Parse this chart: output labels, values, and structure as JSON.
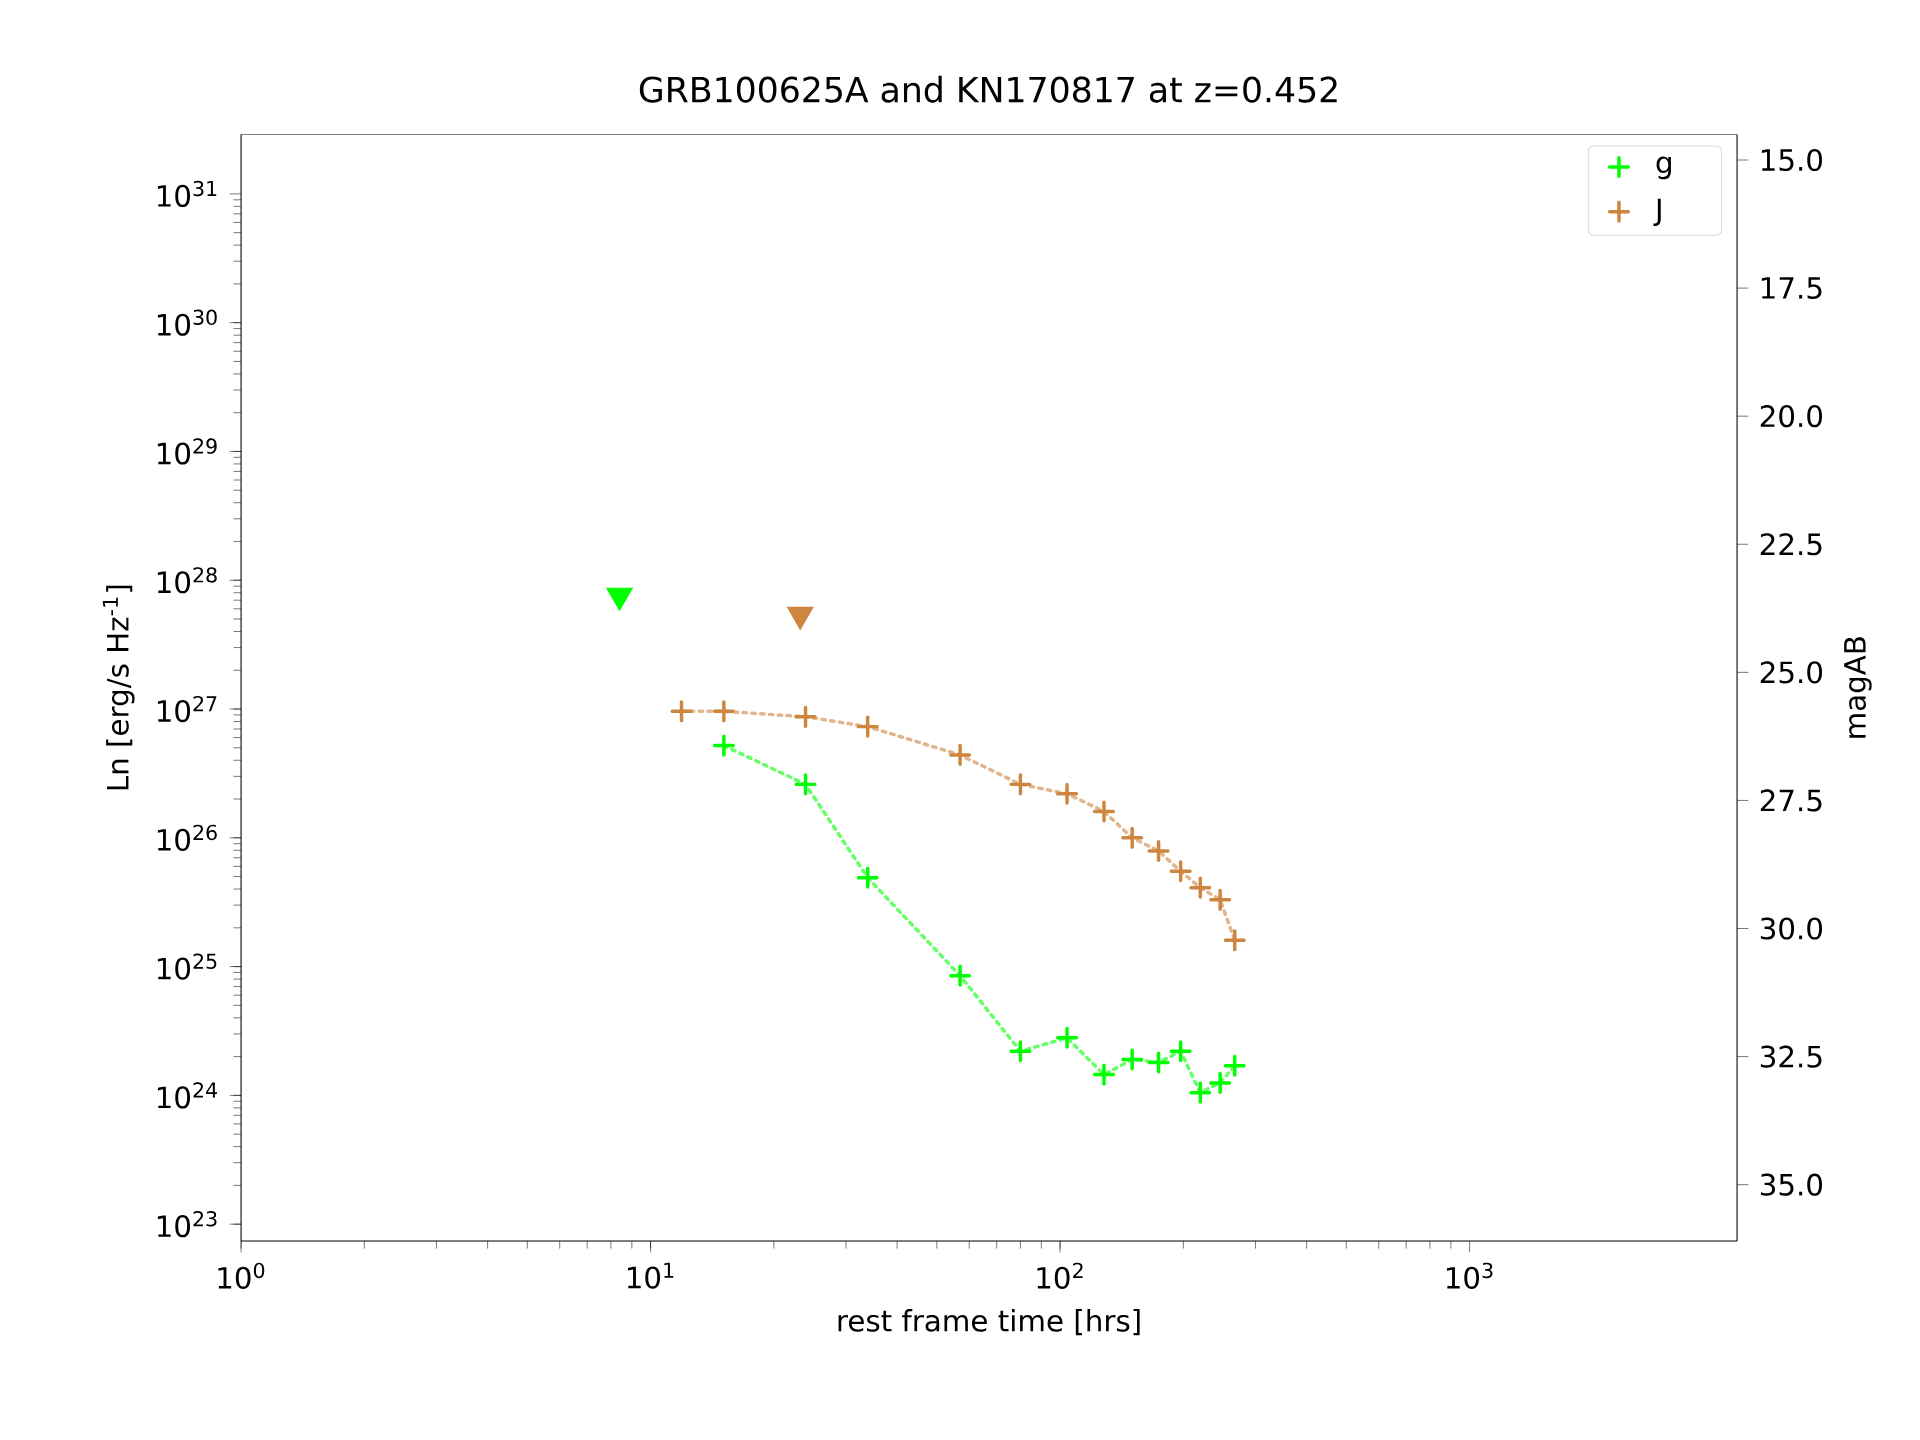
{
  "chart_data": {
    "type": "line",
    "title": "GRB100625A and KN170817 at z=0.452",
    "xlabel": "rest frame time [hrs]",
    "ylabel": "Ln [erg/s Hz$^{-1}$]",
    "y2label": "magAB",
    "log": "xy",
    "xlim": [
      1,
      4500
    ],
    "ylim": [
      7.4e+22,
      2.9e+31
    ],
    "y2lim": [
      36.1,
      14.5
    ],
    "xticks": [
      {
        "value": 1,
        "label": "10$^{0}$"
      },
      {
        "value": 10,
        "label": "10$^{1}$"
      },
      {
        "value": 100,
        "label": "10$^{2}$"
      },
      {
        "value": 1000,
        "label": "10$^{3}$"
      }
    ],
    "yticks": [
      {
        "value": 1e+23,
        "label": "10$^{23}$"
      },
      {
        "value": 1e+24,
        "label": "10$^{24}$"
      },
      {
        "value": 1e+25,
        "label": "10$^{25}$"
      },
      {
        "value": 1e+26,
        "label": "10$^{26}$"
      },
      {
        "value": 1e+27,
        "label": "10$^{27}$"
      },
      {
        "value": 1e+28,
        "label": "10$^{28}$"
      },
      {
        "value": 1e+29,
        "label": "10$^{29}$"
      },
      {
        "value": 1e+30,
        "label": "10$^{30}$"
      },
      {
        "value": 1e+31,
        "label": "10$^{31}$"
      }
    ],
    "y2ticks": [
      {
        "value": 15,
        "label": "15.0"
      },
      {
        "value": 17.5,
        "label": "17.5"
      },
      {
        "value": 20,
        "label": "20.0"
      },
      {
        "value": 22.5,
        "label": "22.5"
      },
      {
        "value": 25,
        "label": "25.0"
      },
      {
        "value": 27.5,
        "label": "27.5"
      },
      {
        "value": 30,
        "label": "30.0"
      },
      {
        "value": 32.5,
        "label": "32.5"
      },
      {
        "value": 35,
        "label": "35.0"
      }
    ],
    "legend": "top right",
    "series": [
      {
        "name": "g",
        "color": "#00ff00",
        "marker": "cross",
        "line_style": "dotted",
        "x": [
          15.1,
          23.9,
          33.9,
          57,
          80,
          104,
          128,
          150,
          174,
          197,
          220,
          246,
          267
        ],
        "values": [
          5.2e+26,
          2.6e+26,
          4.9e+25,
          8.5e+24,
          2.2e+24,
          2.8e+24,
          1.45e+24,
          1.9e+24,
          1.8e+24,
          2.2e+24,
          1.05e+24,
          1.25e+24,
          1.7e+24
        ]
      },
      {
        "name": "J",
        "color": "#cd853f",
        "marker": "cross",
        "line_style": "dotted",
        "x": [
          11.9,
          15.1,
          23.9,
          33.9,
          57,
          80,
          104,
          128,
          150,
          174,
          197,
          220,
          246,
          267
        ],
        "values": [
          9.6e+26,
          9.6e+26,
          8.7e+26,
          7.3e+26,
          4.4e+26,
          2.6e+26,
          2.2e+26,
          1.6e+26,
          1e+26,
          7.9e+25,
          5.5e+25,
          4.1e+25,
          3.3e+25,
          1.6e+25
        ]
      },
      {
        "type": "scatter",
        "color": "#00ff00",
        "marker": "triangle",
        "x": [
          8.4
        ],
        "values": [
          7.6e+27
        ]
      },
      {
        "type": "scatter",
        "color": "#cd853f",
        "marker": "triangle",
        "x": [
          23.2
        ],
        "values": [
          5.4e+27
        ]
      }
    ]
  }
}
